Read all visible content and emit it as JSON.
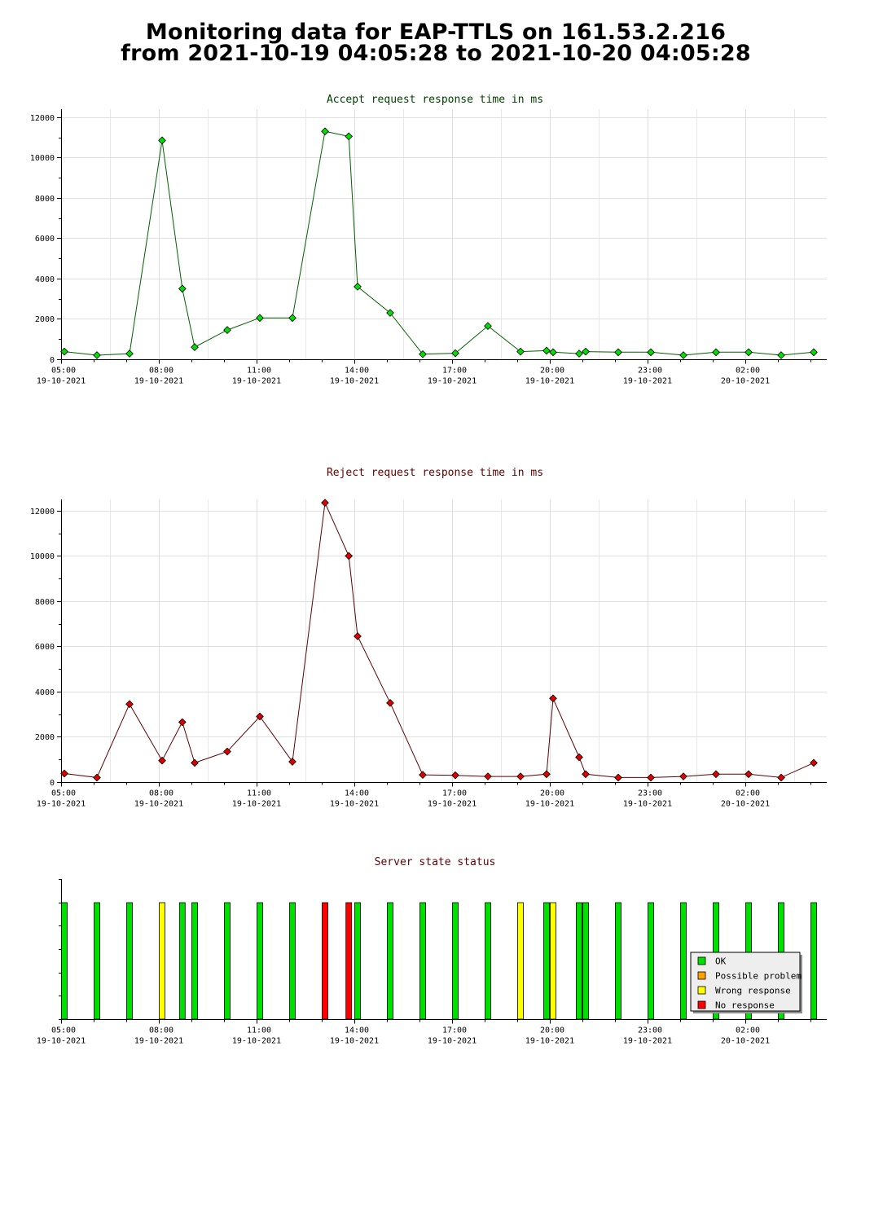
{
  "page": {
    "title_line1": "Monitoring data for EAP-TTLS on 161.53.2.216",
    "title_line2": "from 2021-10-19 04:05:28 to 2021-10-20 04:05:28"
  },
  "colors": {
    "accept_marker": "#00e000",
    "accept_line": "#006000",
    "accept_title": "#004000",
    "reject_marker": "#e00000",
    "reject_line": "#600000",
    "reject_title": "#600000",
    "status_title": "#600000",
    "ok": "#00e000",
    "possible_problem": "#ffa000",
    "wrong_response": "#ffff00",
    "no_response": "#ff0000"
  },
  "x_axis": {
    "ticks": [
      {
        "time": "05:00",
        "date": "19-10-2021",
        "hour": 5
      },
      {
        "time": "08:00",
        "date": "19-10-2021",
        "hour": 8
      },
      {
        "time": "11:00",
        "date": "19-10-2021",
        "hour": 11
      },
      {
        "time": "14:00",
        "date": "19-10-2021",
        "hour": 14
      },
      {
        "time": "17:00",
        "date": "19-10-2021",
        "hour": 17
      },
      {
        "time": "20:00",
        "date": "19-10-2021",
        "hour": 20
      },
      {
        "time": "23:00",
        "date": "19-10-2021",
        "hour": 23
      },
      {
        "time": "02:00",
        "date": "20-10-2021",
        "hour": 26
      }
    ],
    "range_hours": [
      5,
      28.5
    ]
  },
  "chart_data": [
    {
      "type": "line",
      "title": "Accept request response time in ms",
      "xlabel": "",
      "ylabel": "",
      "ylim": [
        0,
        12400
      ],
      "yticks": [
        0,
        2000,
        4000,
        6000,
        8000,
        10000,
        12000
      ],
      "grid": true,
      "points": [
        [
          5.1,
          380
        ],
        [
          6.1,
          200
        ],
        [
          7.1,
          280
        ],
        [
          8.1,
          10850
        ],
        [
          8.72,
          3500
        ],
        [
          9.1,
          600
        ],
        [
          10.1,
          1450
        ],
        [
          11.1,
          2050
        ],
        [
          12.1,
          2050
        ],
        [
          13.1,
          11300
        ],
        [
          13.83,
          11050
        ],
        [
          14.1,
          3600
        ],
        [
          15.1,
          2300
        ],
        [
          16.1,
          250
        ],
        [
          17.1,
          300
        ],
        [
          18.1,
          1650
        ],
        [
          19.1,
          380
        ],
        [
          19.9,
          430
        ],
        [
          20.1,
          350
        ],
        [
          20.9,
          280
        ],
        [
          21.1,
          380
        ],
        [
          22.1,
          350
        ],
        [
          23.1,
          350
        ],
        [
          24.1,
          200
        ],
        [
          25.1,
          350
        ],
        [
          26.1,
          350
        ],
        [
          27.1,
          200
        ],
        [
          28.1,
          350
        ]
      ]
    },
    {
      "type": "line",
      "title": "Reject request response time in ms",
      "xlabel": "",
      "ylabel": "",
      "ylim": [
        0,
        12500
      ],
      "yticks": [
        0,
        2000,
        4000,
        6000,
        8000,
        10000,
        12000
      ],
      "grid": true,
      "points": [
        [
          5.1,
          380
        ],
        [
          6.1,
          200
        ],
        [
          7.1,
          3450
        ],
        [
          8.1,
          950
        ],
        [
          8.72,
          2650
        ],
        [
          9.1,
          850
        ],
        [
          10.1,
          1350
        ],
        [
          11.1,
          2900
        ],
        [
          12.1,
          900
        ],
        [
          13.1,
          12350
        ],
        [
          13.83,
          10000
        ],
        [
          14.1,
          6450
        ],
        [
          15.1,
          3500
        ],
        [
          16.1,
          320
        ],
        [
          17.1,
          300
        ],
        [
          18.1,
          250
        ],
        [
          19.1,
          250
        ],
        [
          19.9,
          350
        ],
        [
          20.1,
          3700
        ],
        [
          20.9,
          1100
        ],
        [
          21.1,
          350
        ],
        [
          22.1,
          200
        ],
        [
          23.1,
          200
        ],
        [
          24.1,
          250
        ],
        [
          25.1,
          350
        ],
        [
          26.1,
          350
        ],
        [
          27.1,
          200
        ],
        [
          28.1,
          850
        ]
      ]
    },
    {
      "type": "bar",
      "title": "Server state status",
      "legend": [
        {
          "label": "OK",
          "status": "ok"
        },
        {
          "label": "Possible problem",
          "status": "possible_problem"
        },
        {
          "label": "Wrong response",
          "status": "wrong_response"
        },
        {
          "label": "No response",
          "status": "no_response"
        }
      ],
      "legend_position": "bottom-right",
      "bars": [
        [
          5.1,
          "ok"
        ],
        [
          6.1,
          "ok"
        ],
        [
          7.1,
          "ok"
        ],
        [
          8.1,
          "wrong_response"
        ],
        [
          8.72,
          "ok"
        ],
        [
          9.1,
          "ok"
        ],
        [
          10.1,
          "ok"
        ],
        [
          11.1,
          "ok"
        ],
        [
          12.1,
          "ok"
        ],
        [
          13.1,
          "no_response"
        ],
        [
          13.83,
          "no_response"
        ],
        [
          14.1,
          "ok"
        ],
        [
          15.1,
          "ok"
        ],
        [
          16.1,
          "ok"
        ],
        [
          17.1,
          "ok"
        ],
        [
          18.1,
          "ok"
        ],
        [
          19.1,
          "wrong_response"
        ],
        [
          19.9,
          "ok"
        ],
        [
          20.1,
          "wrong_response"
        ],
        [
          20.9,
          "ok"
        ],
        [
          21.1,
          "ok"
        ],
        [
          22.1,
          "ok"
        ],
        [
          23.1,
          "ok"
        ],
        [
          24.1,
          "ok"
        ],
        [
          25.1,
          "ok"
        ],
        [
          26.1,
          "ok"
        ],
        [
          27.1,
          "ok"
        ],
        [
          28.1,
          "ok"
        ]
      ]
    }
  ]
}
